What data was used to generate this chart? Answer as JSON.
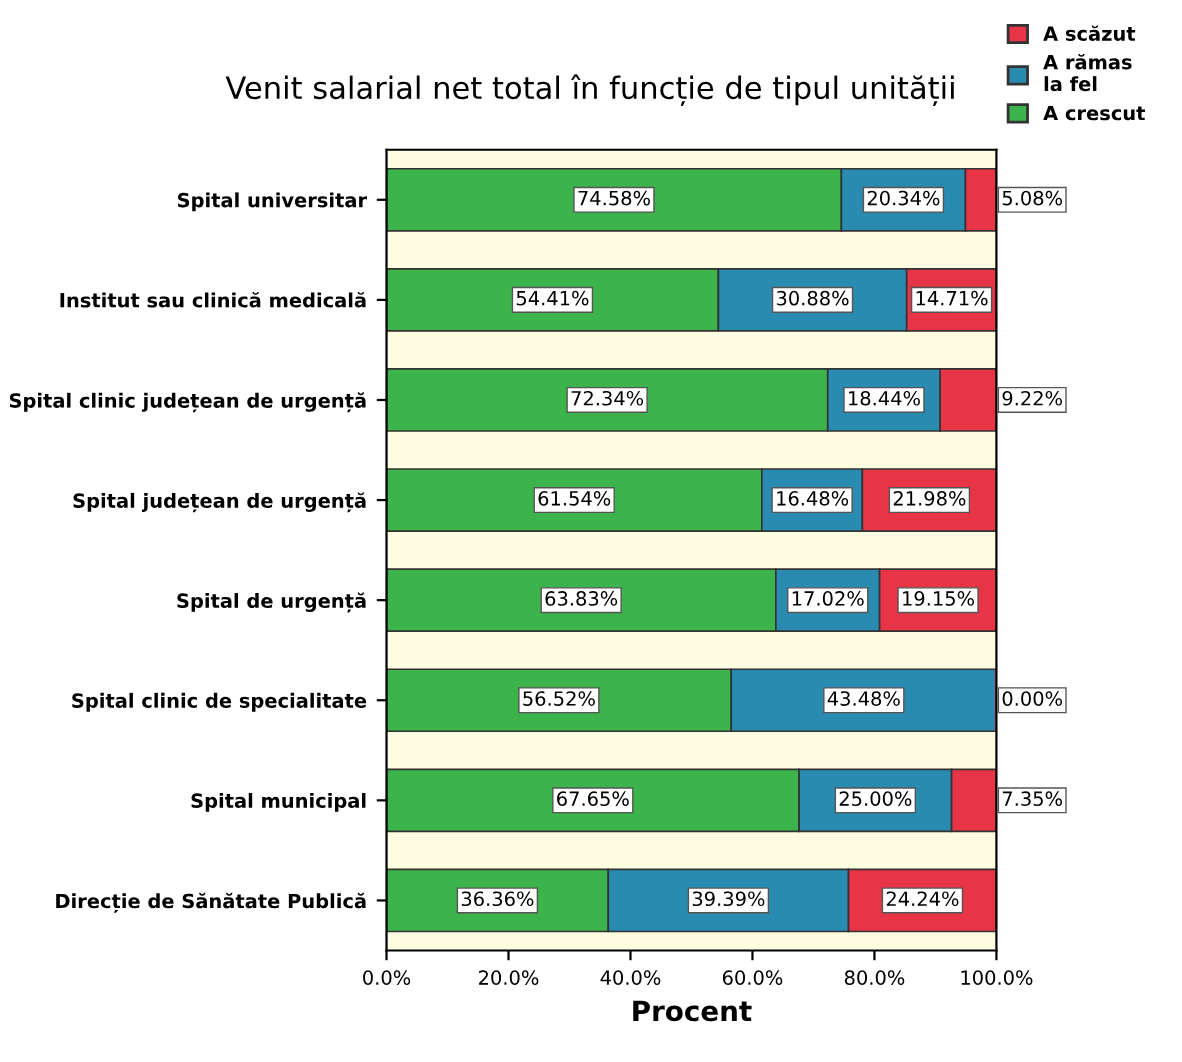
{
  "chart_data": {
    "type": "bar",
    "orientation": "horizontal",
    "stacked": true,
    "title": "Venit salarial net total în funcție de tipul unității",
    "xlabel": "Procent",
    "categories": [
      "Spital universitar",
      "Institut sau clinică medicală",
      "Spital clinic județean de urgență",
      "Spital județean de urgență",
      "Spital de urgență",
      "Spital clinic de specialitate",
      "Spital municipal",
      "Direcție de Sănătate Publică"
    ],
    "series": [
      {
        "name": "A crescut",
        "color": "#3cb44b",
        "values": [
          74.58,
          54.41,
          72.34,
          61.54,
          63.83,
          56.52,
          67.65,
          36.36
        ],
        "value_labels": [
          "74.58%",
          "54.41%",
          "72.34%",
          "61.54%",
          "63.83%",
          "56.52%",
          "67.65%",
          "36.36%"
        ]
      },
      {
        "name": "A rămas\nla fel",
        "color": "#2a8bb0",
        "values": [
          20.34,
          30.88,
          18.44,
          16.48,
          17.02,
          43.48,
          25.0,
          39.39
        ],
        "value_labels": [
          "20.34%",
          "30.88%",
          "18.44%",
          "16.48%",
          "17.02%",
          "43.48%",
          "25.00%",
          "39.39%"
        ]
      },
      {
        "name": "A scăzut",
        "color": "#e83447",
        "values": [
          5.08,
          14.71,
          9.22,
          21.98,
          19.15,
          0.0,
          7.35,
          24.24
        ],
        "value_labels": [
          "5.08%",
          "14.71%",
          "9.22%",
          "21.98%",
          "19.15%",
          "0.00%",
          "7.35%",
          "24.24%"
        ]
      }
    ],
    "xlim": [
      0,
      100
    ],
    "xticks": [
      {
        "value": 0,
        "label": "0.0%"
      },
      {
        "value": 20,
        "label": "20.0%"
      },
      {
        "value": 40,
        "label": "40.0%"
      },
      {
        "value": 60,
        "label": "60.0%"
      },
      {
        "value": 80,
        "label": "80.0%"
      },
      {
        "value": 100,
        "label": "100.0%"
      }
    ],
    "legend": "top right",
    "grid": false
  }
}
